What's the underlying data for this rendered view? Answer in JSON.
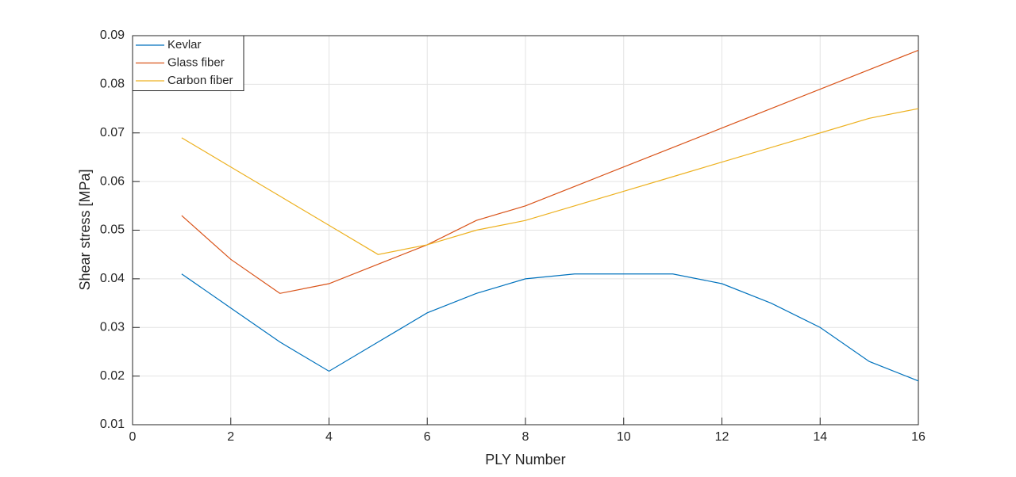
{
  "chart_data": {
    "type": "line",
    "xlabel": "PLY Number",
    "ylabel": "Shear stress [MPa]",
    "x": [
      1,
      2,
      3,
      4,
      5,
      6,
      7,
      8,
      9,
      10,
      11,
      12,
      13,
      14,
      15,
      16
    ],
    "series": [
      {
        "name": "Kevlar",
        "color": "#0072BD",
        "values": [
          0.041,
          0.034,
          0.027,
          0.021,
          0.027,
          0.033,
          0.037,
          0.04,
          0.041,
          0.041,
          0.041,
          0.039,
          0.035,
          0.03,
          0.023,
          0.019
        ]
      },
      {
        "name": "Glass fiber",
        "color": "#D95319",
        "values": [
          0.053,
          0.044,
          0.037,
          0.039,
          0.043,
          0.047,
          0.052,
          0.055,
          0.059,
          0.063,
          0.067,
          0.071,
          0.075,
          0.079,
          0.083,
          0.087
        ]
      },
      {
        "name": "Carbon fiber",
        "color": "#EDB120",
        "values": [
          0.069,
          0.063,
          0.057,
          0.051,
          0.045,
          0.047,
          0.05,
          0.052,
          0.055,
          0.058,
          0.061,
          0.064,
          0.067,
          0.07,
          0.073,
          0.075
        ]
      }
    ],
    "xlim": [
      0,
      16
    ],
    "xticks": [
      0,
      2,
      4,
      6,
      8,
      10,
      12,
      14,
      16
    ],
    "ylim": [
      0.01,
      0.09
    ],
    "yticks": [
      0.01,
      0.02,
      0.03,
      0.04,
      0.05,
      0.06,
      0.07,
      0.08,
      0.09
    ],
    "grid": true,
    "legend": "northwest"
  }
}
